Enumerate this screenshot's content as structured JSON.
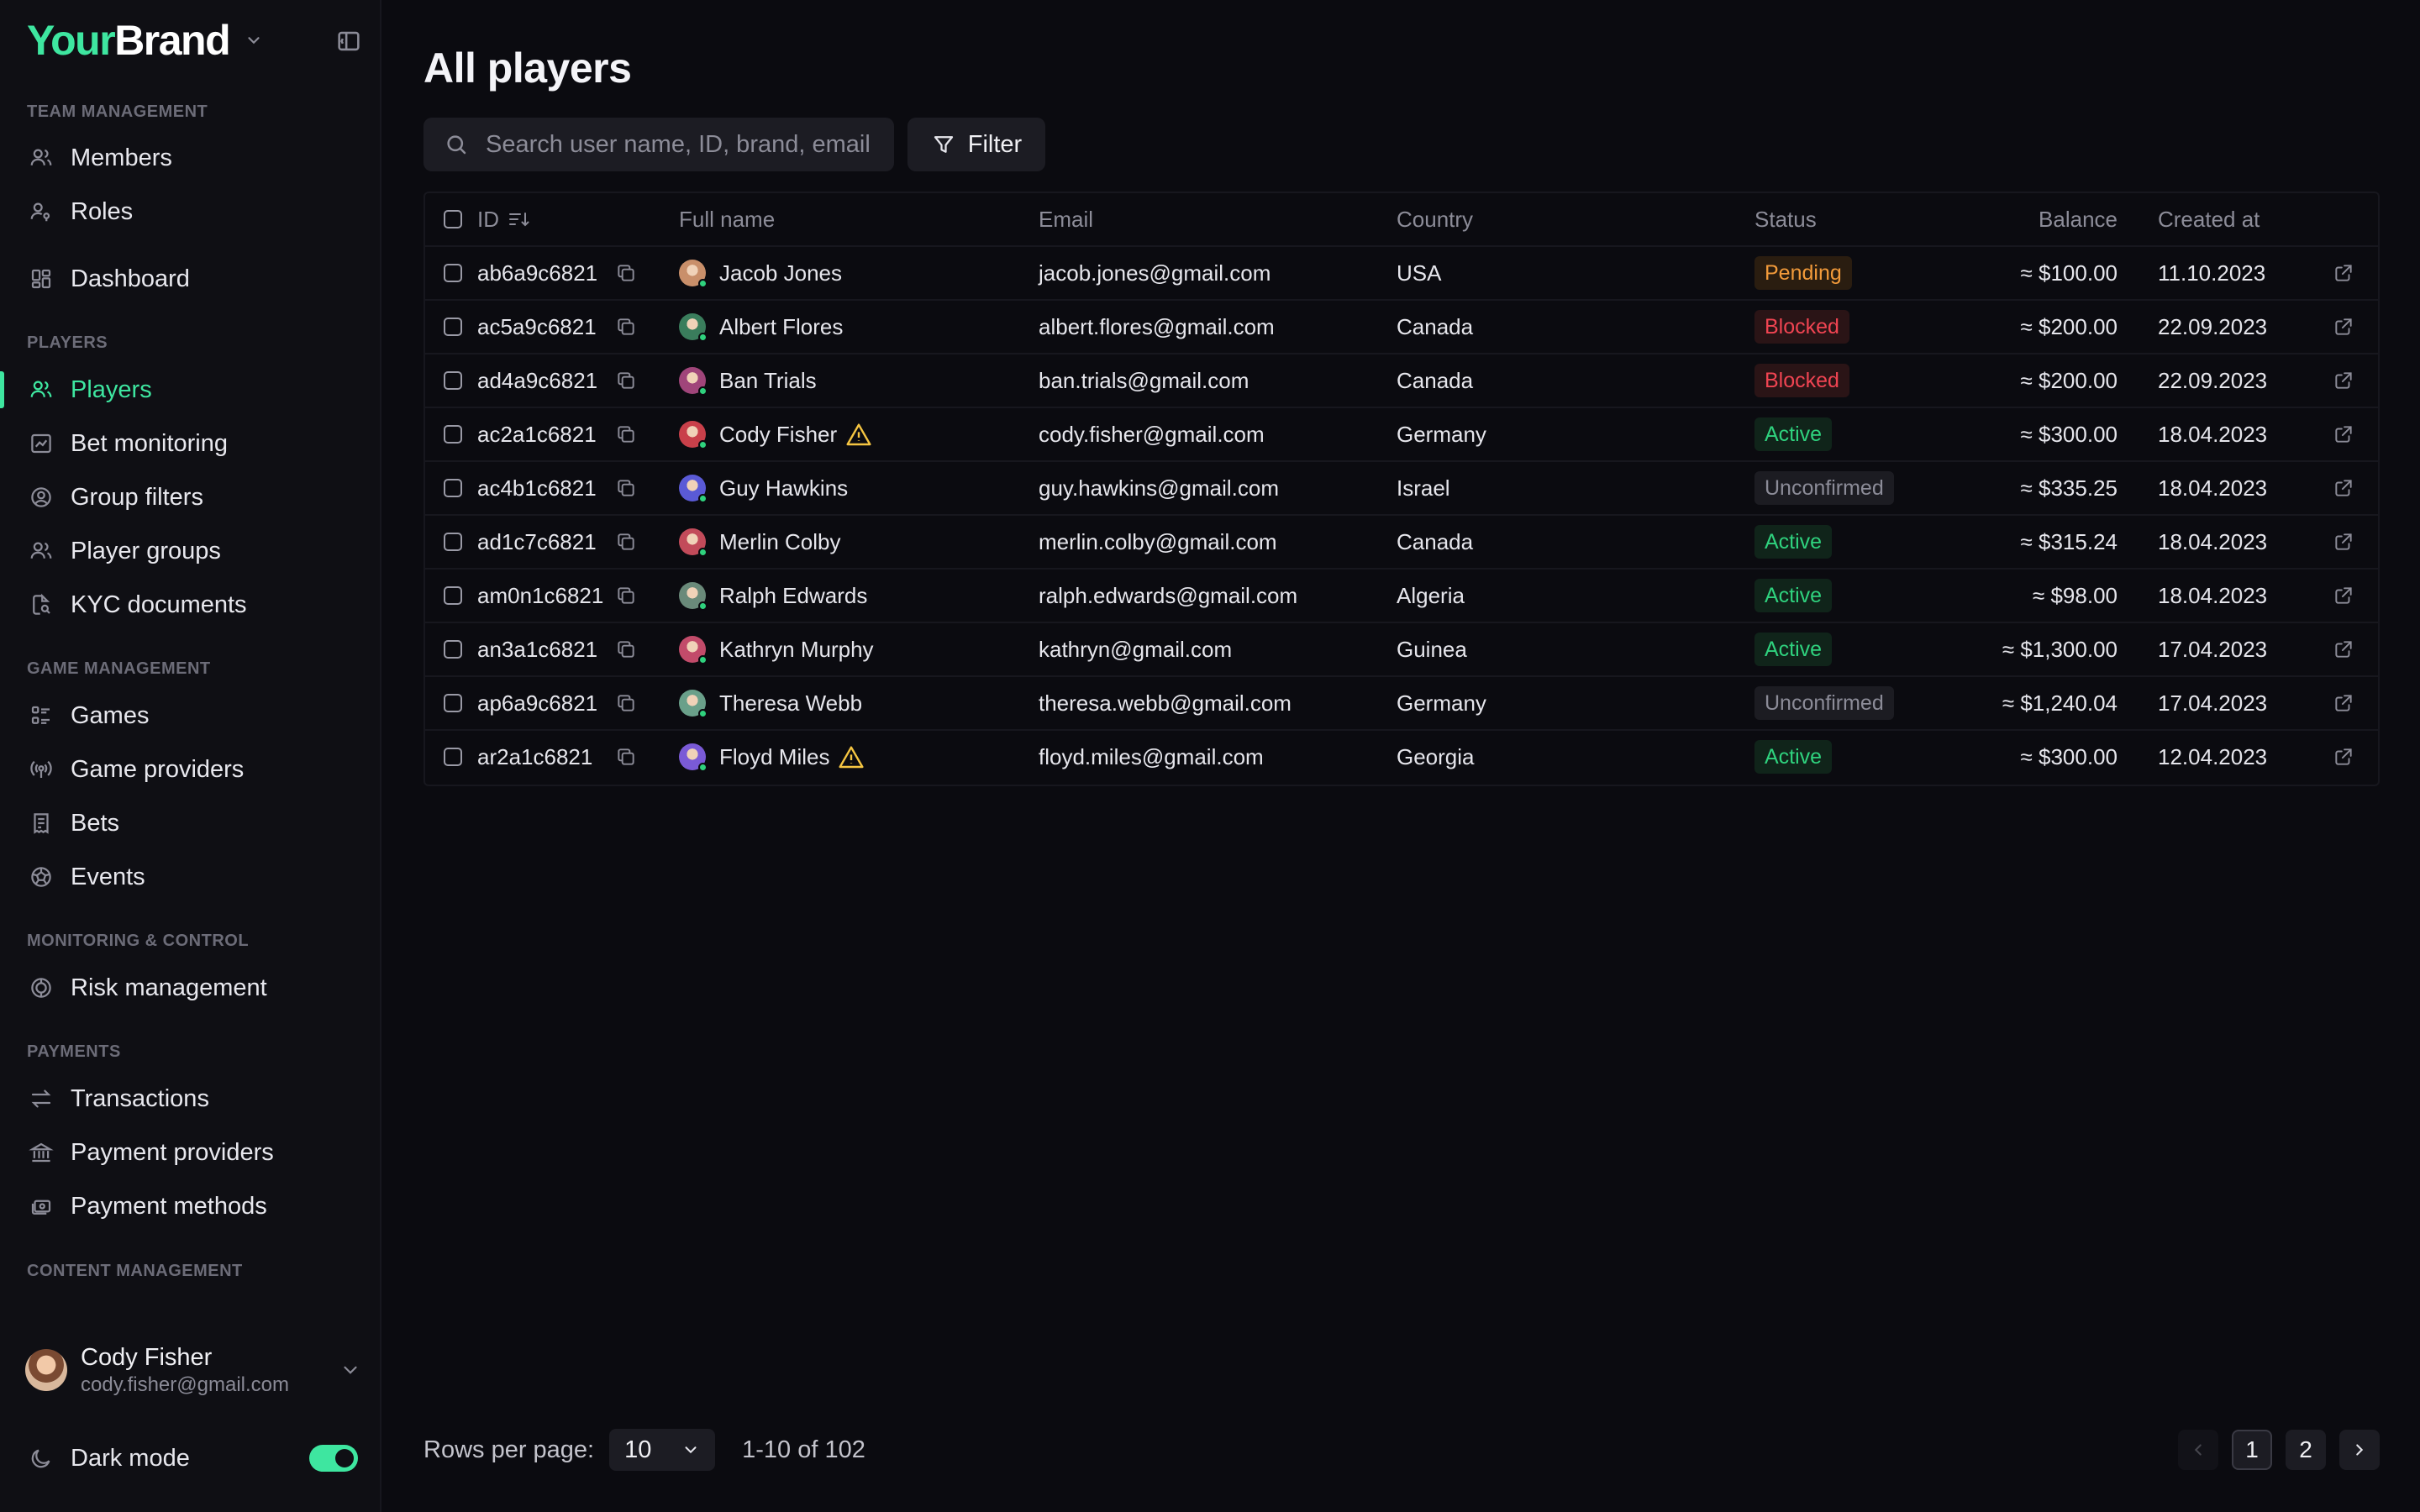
{
  "brand": {
    "part1": "Your",
    "part2": "Brand"
  },
  "sidebar": {
    "sections": {
      "team": "Team management",
      "players": "Players",
      "game": "Game management",
      "monitoring": "Monitoring & control",
      "payments": "Payments",
      "content": "Content management"
    },
    "items": {
      "members": "Members",
      "roles": "Roles",
      "dashboard": "Dashboard",
      "players": "Players",
      "bet_monitoring": "Bet monitoring",
      "group_filters": "Group filters",
      "player_groups": "Player groups",
      "kyc": "KYC documents",
      "games": "Games",
      "game_providers": "Game providers",
      "bets": "Bets",
      "events": "Events",
      "risk": "Risk management",
      "transactions": "Transactions",
      "payment_providers": "Payment providers",
      "payment_methods": "Payment methods"
    },
    "user": {
      "name": "Cody Fisher",
      "email": "cody.fisher@gmail.com"
    },
    "dark_mode": "Dark mode"
  },
  "main": {
    "title": "All players",
    "search_placeholder": "Search user name, ID, brand, email",
    "filter_label": "Filter",
    "columns": {
      "id": "ID",
      "full_name": "Full name",
      "email": "Email",
      "country": "Country",
      "status": "Status",
      "balance": "Balance",
      "created_at": "Created at"
    },
    "rows": [
      {
        "id": "ab6a9c6821",
        "name": "Jacob Jones",
        "warn": false,
        "email": "jacob.jones@gmail.com",
        "country": "USA",
        "status": "Pending",
        "balance": "≈ $100.00",
        "created": "11.10.2023"
      },
      {
        "id": "ac5a9c6821",
        "name": "Albert Flores",
        "warn": false,
        "email": "albert.flores@gmail.com",
        "country": "Canada",
        "status": "Blocked",
        "balance": "≈ $200.00",
        "created": "22.09.2023"
      },
      {
        "id": "ad4a9c6821",
        "name": "Ban Trials",
        "warn": false,
        "email": "ban.trials@gmail.com",
        "country": "Canada",
        "status": "Blocked",
        "balance": "≈ $200.00",
        "created": "22.09.2023"
      },
      {
        "id": "ac2a1c6821",
        "name": "Cody Fisher",
        "warn": true,
        "email": "cody.fisher@gmail.com",
        "country": "Germany",
        "status": "Active",
        "balance": "≈ $300.00",
        "created": "18.04.2023"
      },
      {
        "id": "ac4b1c6821",
        "name": "Guy Hawkins",
        "warn": false,
        "email": "guy.hawkins@gmail.com",
        "country": "Israel",
        "status": "Unconfirmed",
        "balance": "≈ $335.25",
        "created": "18.04.2023"
      },
      {
        "id": "ad1c7c6821",
        "name": "Merlin Colby",
        "warn": false,
        "email": "merlin.colby@gmail.com",
        "country": "Canada",
        "status": "Active",
        "balance": "≈ $315.24",
        "created": "18.04.2023"
      },
      {
        "id": "am0n1c6821",
        "name": "Ralph Edwards",
        "warn": false,
        "email": "ralph.edwards@gmail.com",
        "country": "Algeria",
        "status": "Active",
        "balance": "≈ $98.00",
        "created": "18.04.2023"
      },
      {
        "id": "an3a1c6821",
        "name": "Kathryn Murphy",
        "warn": false,
        "email": "kathryn@gmail.com",
        "country": "Guinea",
        "status": "Active",
        "balance": "≈ $1,300.00",
        "created": "17.04.2023"
      },
      {
        "id": "ap6a9c6821",
        "name": "Theresa Webb",
        "warn": false,
        "email": "theresa.webb@gmail.com",
        "country": "Germany",
        "status": "Unconfirmed",
        "balance": "≈ $1,240.04",
        "created": "17.04.2023"
      },
      {
        "id": "ar2a1c6821",
        "name": "Floyd Miles",
        "warn": true,
        "email": "floyd.miles@gmail.com",
        "country": "Georgia",
        "status": "Active",
        "balance": "≈ $300.00",
        "created": "12.04.2023"
      }
    ],
    "avatar_colors": [
      "#c98f6a",
      "#3a7d5c",
      "#a0457a",
      "#c9404a",
      "#5a5ad6",
      "#c24b5a",
      "#6a8a7a",
      "#c24b6a",
      "#6aa08a",
      "#7a5ad6"
    ],
    "status_colors": {
      "Pending": "#f29a3a",
      "Blocked": "#f04452",
      "Active": "#2fd27e",
      "Unconfirmed": "#8c8c98"
    }
  },
  "footer": {
    "rows_per_page_label": "Rows per page:",
    "rows_per_page_value": "10",
    "range": "1-10 of 102",
    "pages": [
      "1",
      "2"
    ]
  },
  "theme": {
    "accent": "#3ee6a0",
    "background": "#0b0b10",
    "sidebar": "#0f0f14"
  }
}
